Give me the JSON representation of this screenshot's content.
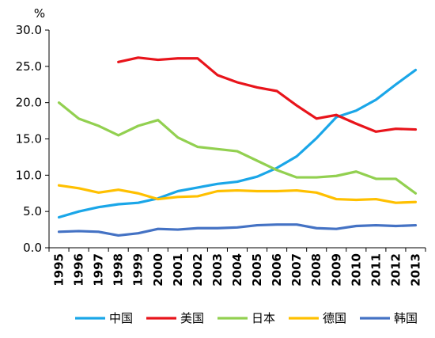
{
  "chart_data": {
    "type": "line",
    "y_unit": "%",
    "ylim": [
      0,
      30
    ],
    "y_ticks": [
      "0.0",
      "5.0",
      "10.0",
      "15.0",
      "20.0",
      "25.0",
      "30.0"
    ],
    "x": [
      "1995",
      "1996",
      "1997",
      "1998",
      "1999",
      "2000",
      "2001",
      "2002",
      "2003",
      "2004",
      "2005",
      "2006",
      "2007",
      "2008",
      "2009",
      "2010",
      "2011",
      "2012",
      "2013"
    ],
    "grid": false,
    "legend_position": "bottom",
    "series": [
      {
        "name": "中国",
        "color": "#1AA6E8",
        "values": [
          4.2,
          5.0,
          5.6,
          6.0,
          6.2,
          6.8,
          7.8,
          8.3,
          8.8,
          9.1,
          9.8,
          11.0,
          12.6,
          15.1,
          18.0,
          18.9,
          20.4,
          22.5,
          24.5
        ]
      },
      {
        "name": "美国",
        "color": "#E8141B",
        "values": [
          null,
          null,
          null,
          25.6,
          26.2,
          25.9,
          26.1,
          26.1,
          23.8,
          22.8,
          22.1,
          21.6,
          19.6,
          17.8,
          18.3,
          17.1,
          16.0,
          16.4,
          16.3
        ]
      },
      {
        "name": "日本",
        "color": "#92D050",
        "values": [
          20.0,
          17.8,
          16.8,
          15.5,
          16.8,
          17.6,
          15.2,
          13.9,
          13.6,
          13.3,
          12.0,
          10.7,
          9.7,
          9.7,
          9.9,
          10.5,
          9.5,
          9.5,
          7.5
        ]
      },
      {
        "name": "德国",
        "color": "#FFC000",
        "values": [
          8.6,
          8.2,
          7.6,
          8.0,
          7.5,
          6.7,
          7.0,
          7.1,
          7.8,
          7.9,
          7.8,
          7.8,
          7.9,
          7.6,
          6.7,
          6.6,
          6.7,
          6.2,
          6.3
        ]
      },
      {
        "name": "韩国",
        "color": "#4472C4",
        "values": [
          2.2,
          2.3,
          2.2,
          1.7,
          2.0,
          2.6,
          2.5,
          2.7,
          2.7,
          2.8,
          3.1,
          3.2,
          3.2,
          2.7,
          2.6,
          3.0,
          3.1,
          3.0,
          3.1
        ]
      }
    ]
  }
}
